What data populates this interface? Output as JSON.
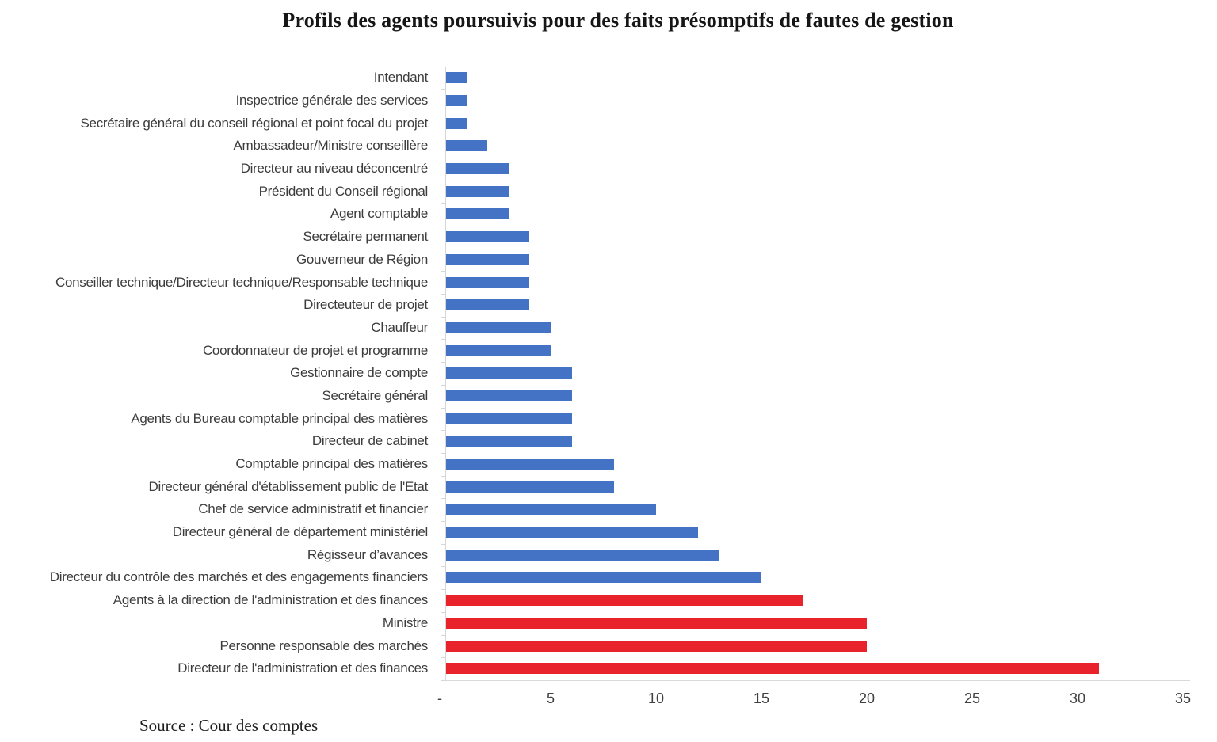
{
  "title": "Profils des agents poursuivis pour des faits présomptifs de fautes de gestion",
  "source": "Source : Cour des comptes",
  "colors": {
    "bar_default": "#4472C4",
    "bar_highlight": "#E8232B",
    "axis_line": "#D9D9D9",
    "label_text": "#3C3C3C"
  },
  "chart_data": {
    "type": "bar",
    "orientation": "horizontal",
    "title": "Profils des agents poursuivis pour des faits présomptifs de fautes de gestion",
    "xlabel": "",
    "ylabel": "",
    "xlim": [
      0,
      35
    ],
    "x_tick_values": [
      0,
      5,
      10,
      15,
      20,
      25,
      30,
      35
    ],
    "x_tick_labels": [
      "-",
      "5",
      "10",
      "15",
      "20",
      "25",
      "30",
      "35"
    ],
    "grid": false,
    "legend": null,
    "bars": [
      {
        "label": "Intendant",
        "value": 1,
        "color": "#4472C4"
      },
      {
        "label": "Inspectrice générale des services",
        "value": 1,
        "color": "#4472C4"
      },
      {
        "label": "Secrétaire général du conseil régional et point focal du projet",
        "value": 1,
        "color": "#4472C4"
      },
      {
        "label": "Ambassadeur/Ministre conseillère",
        "value": 2,
        "color": "#4472C4"
      },
      {
        "label": "Directeur au niveau déconcentré",
        "value": 3,
        "color": "#4472C4"
      },
      {
        "label": "Président du Conseil régional",
        "value": 3,
        "color": "#4472C4"
      },
      {
        "label": "Agent comptable",
        "value": 3,
        "color": "#4472C4"
      },
      {
        "label": "Secrétaire permanent",
        "value": 4,
        "color": "#4472C4"
      },
      {
        "label": "Gouverneur de Région",
        "value": 4,
        "color": "#4472C4"
      },
      {
        "label": "Conseiller technique/Directeur technique/Responsable technique",
        "value": 4,
        "color": "#4472C4"
      },
      {
        "label": "Directeuteur de projet",
        "value": 4,
        "color": "#4472C4"
      },
      {
        "label": "Chauffeur",
        "value": 5,
        "color": "#4472C4"
      },
      {
        "label": "Coordonnateur de projet et programme",
        "value": 5,
        "color": "#4472C4"
      },
      {
        "label": "Gestionnaire de compte",
        "value": 6,
        "color": "#4472C4"
      },
      {
        "label": "Secrétaire général",
        "value": 6,
        "color": "#4472C4"
      },
      {
        "label": "Agents du Bureau comptable principal des matières",
        "value": 6,
        "color": "#4472C4"
      },
      {
        "label": "Directeur de cabinet",
        "value": 6,
        "color": "#4472C4"
      },
      {
        "label": "Comptable principal des matières",
        "value": 8,
        "color": "#4472C4"
      },
      {
        "label": "Directeur général d'établissement public de l'Etat",
        "value": 8,
        "color": "#4472C4"
      },
      {
        "label": "Chef de service administratif et financier",
        "value": 10,
        "color": "#4472C4"
      },
      {
        "label": "Directeur général de département ministériel",
        "value": 12,
        "color": "#4472C4"
      },
      {
        "label": "Régisseur d’avances",
        "value": 13,
        "color": "#4472C4"
      },
      {
        "label": "Directeur du contrôle des marchés et des engagements financiers",
        "value": 15,
        "color": "#4472C4"
      },
      {
        "label": "Agents à la direction de l'administration et des finances",
        "value": 17,
        "color": "#E8232B"
      },
      {
        "label": "Ministre",
        "value": 20,
        "color": "#E8232B"
      },
      {
        "label": "Personne responsable des marchés",
        "value": 20,
        "color": "#E8232B"
      },
      {
        "label": "Directeur de l'administration et des finances",
        "value": 31,
        "color": "#E8232B"
      }
    ]
  }
}
